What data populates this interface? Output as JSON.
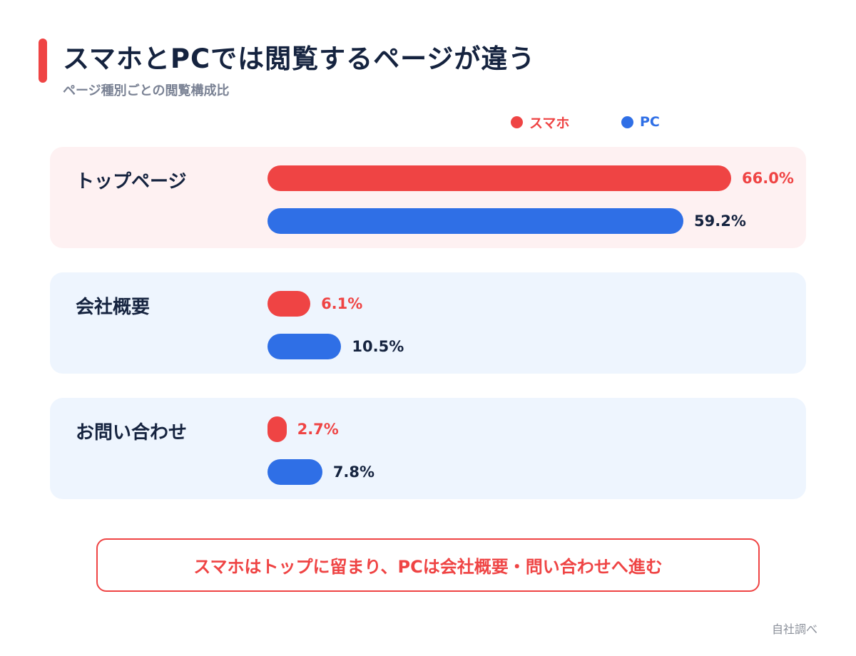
{
  "title": "スマホとPCでは閲覧するページが違う",
  "subtitle": "ページ種別ごとの閲覧構成比",
  "colors": {
    "smartphone": "#ef4444",
    "pc": "#2f6fe6",
    "accent": "#ef4444"
  },
  "chart_data": {
    "type": "bar",
    "orientation": "horizontal",
    "title": "スマホとPCでは閲覧するページが違う",
    "subtitle": "ページ種別ごとの閲覧構成比",
    "categories": [
      "トップページ",
      "会社概要",
      "お問い合わせ"
    ],
    "series": [
      {
        "name": "スマホ",
        "values": [
          66.0,
          6.1,
          2.7
        ],
        "labels": [
          "66.0%",
          "6.1%",
          "2.7%"
        ]
      },
      {
        "name": "PC",
        "values": [
          59.2,
          10.5,
          7.8
        ],
        "labels": [
          "59.2%",
          "10.5%",
          "7.8%"
        ]
      }
    ],
    "xlim": [
      0,
      66
    ],
    "legend": "top-right",
    "grid": false
  },
  "callout": "スマホはトップに留まり、PCは会社概要・問い合わせへ進む",
  "source": "自社調べ"
}
